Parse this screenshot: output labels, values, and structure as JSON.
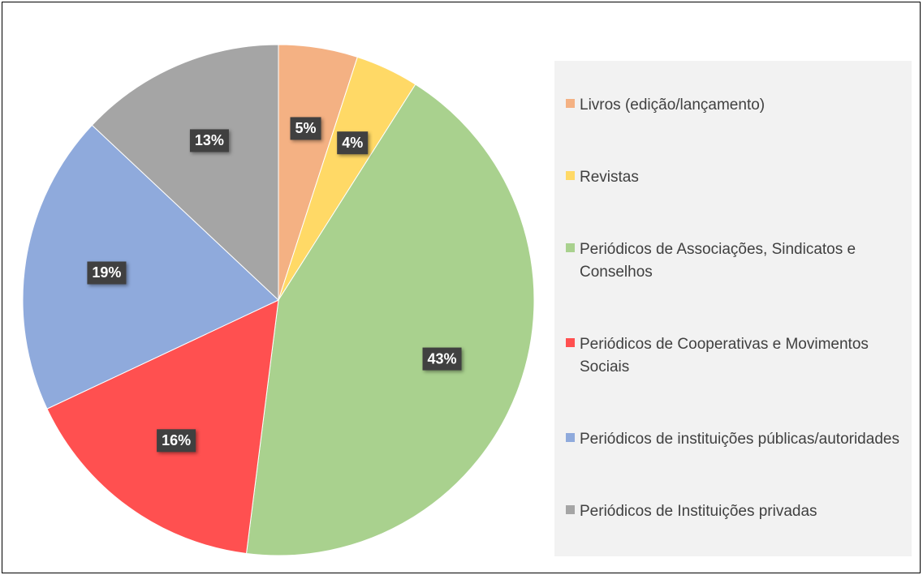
{
  "chart_data": {
    "type": "pie",
    "categories": [
      "Livros (edição/lançamento)",
      "Revistas",
      "Periódicos de Associações, Sindicatos e Conselhos",
      "Periódicos de Cooperativas e Movimentos Sociais",
      "Periódicos de instituições públicas/autoridades",
      "Periódicos de Instituições privadas"
    ],
    "values": [
      5,
      4,
      43,
      16,
      19,
      13
    ],
    "value_labels": [
      "5%",
      "4%",
      "43%",
      "16%",
      "19%",
      "13%"
    ],
    "colors": [
      "#f4b183",
      "#ffd966",
      "#a9d18e",
      "#ff5050",
      "#8faadc",
      "#a5a5a5"
    ],
    "legend": "right"
  }
}
